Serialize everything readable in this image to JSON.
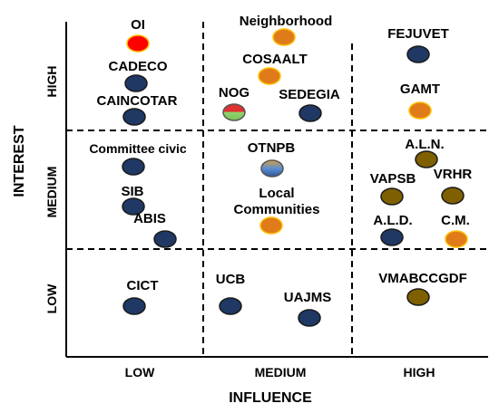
{
  "axes": {
    "x_title": "INFLUENCE",
    "y_title": "INTEREST",
    "x_levels": [
      "LOW",
      "MEDIUM",
      "HIGH"
    ],
    "y_levels": [
      "HIGH",
      "MEDIUM",
      "LOW"
    ]
  },
  "colors": {
    "navy": "#1f3864",
    "orange": "#e07b1a",
    "olive": "#7f6000",
    "red": "#ff0000",
    "outline_orange": "#ffc000",
    "outline_dark": "#1a1a1a"
  },
  "stakeholders": [
    {
      "name": "OI",
      "influence": "low",
      "interest": "high",
      "color": "red"
    },
    {
      "name": "CADECO",
      "influence": "low",
      "interest": "high",
      "color": "navy"
    },
    {
      "name": "CAINCOTAR",
      "influence": "low",
      "interest": "high",
      "color": "navy"
    },
    {
      "name": "Neighborhood",
      "influence": "medium",
      "interest": "high",
      "color": "orange"
    },
    {
      "name": "COSAALT",
      "influence": "medium",
      "interest": "high",
      "color": "orange"
    },
    {
      "name": "NOG",
      "influence": "medium",
      "interest": "high",
      "color": "multicolor"
    },
    {
      "name": "SEDEGIA",
      "influence": "medium",
      "interest": "high",
      "color": "navy"
    },
    {
      "name": "FEJUVET",
      "influence": "high",
      "interest": "high",
      "color": "navy"
    },
    {
      "name": "GAMT",
      "influence": "high",
      "interest": "high",
      "color": "orange"
    },
    {
      "name": "Committee civic",
      "influence": "low",
      "interest": "medium",
      "color": "navy"
    },
    {
      "name": "SIB",
      "influence": "low",
      "interest": "medium",
      "color": "navy"
    },
    {
      "name": "ABIS",
      "influence": "low",
      "interest": "medium",
      "color": "navy"
    },
    {
      "name": "OTNPB",
      "influence": "medium",
      "interest": "medium",
      "color": "gradient-blue"
    },
    {
      "name": "Local Communities",
      "influence": "medium",
      "interest": "medium",
      "color": "orange"
    },
    {
      "name": "A.L.N.",
      "influence": "high",
      "interest": "medium",
      "color": "olive"
    },
    {
      "name": "VAPSB",
      "influence": "high",
      "interest": "medium",
      "color": "olive"
    },
    {
      "name": "VRHR",
      "influence": "high",
      "interest": "medium",
      "color": "olive"
    },
    {
      "name": "A.L.D.",
      "influence": "high",
      "interest": "medium",
      "color": "navy"
    },
    {
      "name": "C.M.",
      "influence": "high",
      "interest": "medium",
      "color": "orange"
    },
    {
      "name": "CICT",
      "influence": "low",
      "interest": "low",
      "color": "navy"
    },
    {
      "name": "UCB",
      "influence": "medium",
      "interest": "low",
      "color": "navy"
    },
    {
      "name": "UAJMS",
      "influence": "medium",
      "interest": "low",
      "color": "navy"
    },
    {
      "name": "VMABCCGDF",
      "influence": "high",
      "interest": "low",
      "color": "olive"
    }
  ]
}
